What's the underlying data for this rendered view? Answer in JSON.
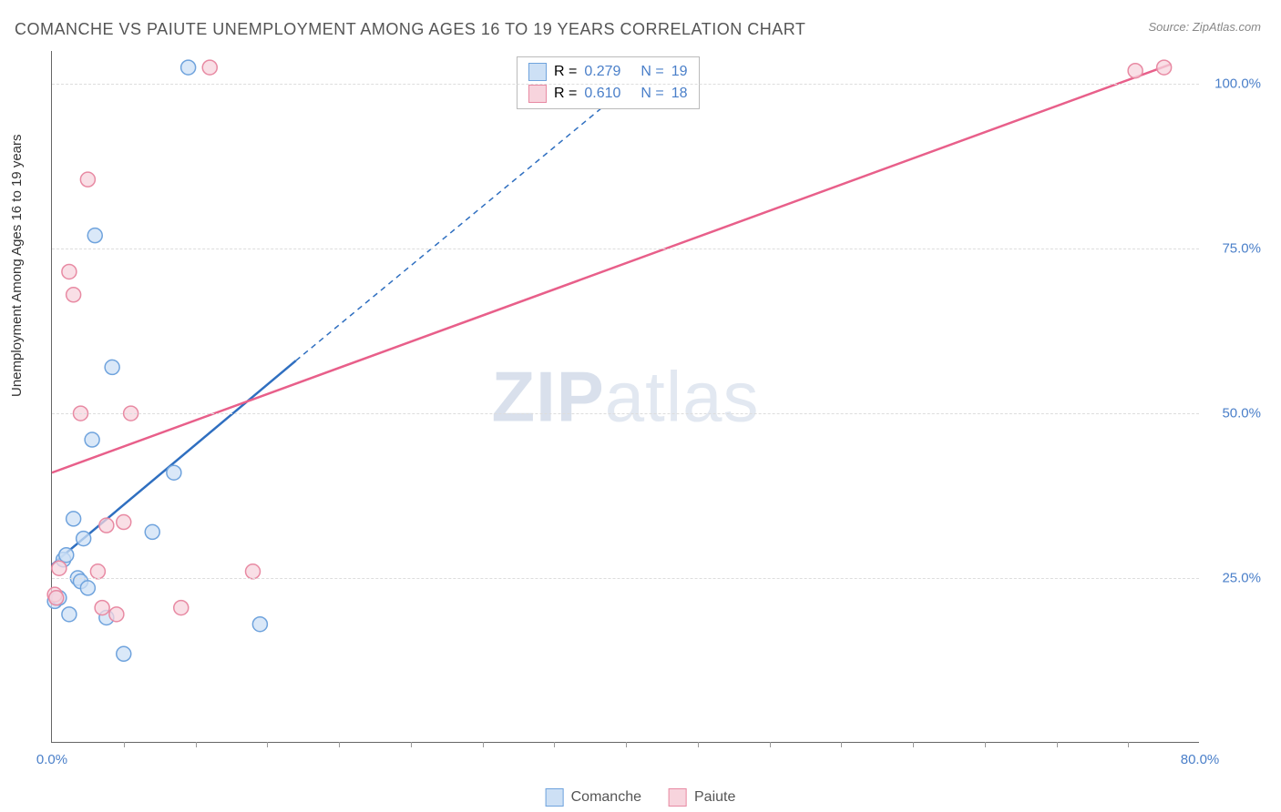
{
  "title": "COMANCHE VS PAIUTE UNEMPLOYMENT AMONG AGES 16 TO 19 YEARS CORRELATION CHART",
  "source_label": "Source: ZipAtlas.com",
  "y_axis_label": "Unemployment Among Ages 16 to 19 years",
  "watermark_bold": "ZIP",
  "watermark_rest": "atlas",
  "chart": {
    "type": "scatter-with-regression",
    "xlim": [
      0,
      80
    ],
    "ylim": [
      0,
      105
    ],
    "x_ticks": [
      0,
      80
    ],
    "x_tick_labels": [
      "0.0%",
      "80.0%"
    ],
    "x_minor_ticks": [
      5,
      10,
      15,
      20,
      25,
      30,
      35,
      40,
      45,
      50,
      55,
      60,
      65,
      70,
      75
    ],
    "y_ticks": [
      25,
      50,
      75,
      100
    ],
    "y_tick_labels": [
      "25.0%",
      "50.0%",
      "75.0%",
      "100.0%"
    ],
    "background_color": "#ffffff",
    "grid_color": "#dddddd",
    "axis_color": "#666666",
    "tick_label_color": "#4a7fc9",
    "marker_radius": 8,
    "marker_stroke_width": 1.5,
    "line_width": 2.5,
    "series": [
      {
        "name": "Comanche",
        "color_fill": "#cde0f5",
        "color_stroke": "#6fa3dd",
        "line_color": "#2f6fc0",
        "R": "0.279",
        "N": "19",
        "points": [
          [
            0.2,
            21.5
          ],
          [
            0.5,
            22.0
          ],
          [
            0.8,
            27.8
          ],
          [
            1.0,
            28.5
          ],
          [
            1.2,
            19.5
          ],
          [
            1.5,
            34.0
          ],
          [
            1.8,
            25.0
          ],
          [
            2.0,
            24.5
          ],
          [
            2.2,
            31.0
          ],
          [
            2.5,
            23.5
          ],
          [
            2.8,
            46.0
          ],
          [
            3.0,
            77.0
          ],
          [
            3.8,
            19.0
          ],
          [
            4.2,
            57.0
          ],
          [
            5.0,
            13.5
          ],
          [
            7.0,
            32.0
          ],
          [
            8.5,
            41.0
          ],
          [
            9.5,
            102.5
          ],
          [
            14.5,
            18.0
          ]
        ],
        "regression_solid": [
          [
            0,
            27
          ],
          [
            17,
            58
          ]
        ],
        "regression_dashed": [
          [
            17,
            58
          ],
          [
            42,
            103
          ]
        ]
      },
      {
        "name": "Paiute",
        "color_fill": "#f7d4dd",
        "color_stroke": "#e88aa3",
        "line_color": "#e85f8a",
        "R": "0.610",
        "N": "18",
        "points": [
          [
            0.2,
            22.5
          ],
          [
            0.3,
            22.0
          ],
          [
            0.5,
            26.5
          ],
          [
            1.2,
            71.5
          ],
          [
            1.5,
            68.0
          ],
          [
            2.0,
            50.0
          ],
          [
            2.5,
            85.5
          ],
          [
            3.2,
            26.0
          ],
          [
            3.5,
            20.5
          ],
          [
            3.8,
            33.0
          ],
          [
            4.5,
            19.5
          ],
          [
            5.0,
            33.5
          ],
          [
            5.5,
            50.0
          ],
          [
            9.0,
            20.5
          ],
          [
            11.0,
            102.5
          ],
          [
            14.0,
            26.0
          ],
          [
            75.5,
            102.0
          ],
          [
            77.5,
            102.5
          ]
        ],
        "regression_solid": [
          [
            0,
            41
          ],
          [
            78,
            103
          ]
        ],
        "regression_dashed": null
      }
    ]
  },
  "stats_box": {
    "R_label": "R =",
    "N_label": "N ="
  },
  "legend": {
    "items": [
      "Comanche",
      "Paiute"
    ]
  }
}
